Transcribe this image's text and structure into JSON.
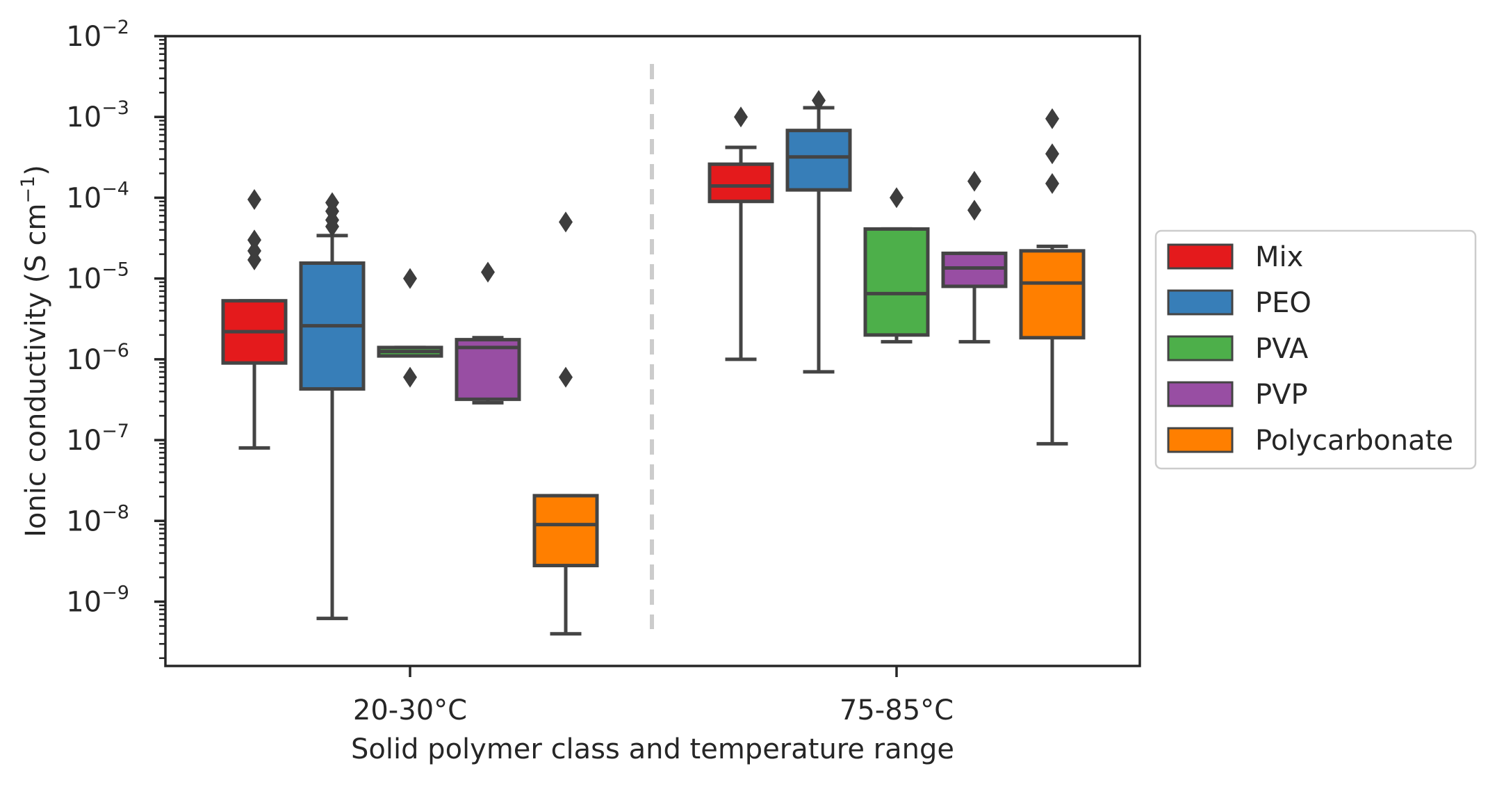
{
  "chart_data": {
    "type": "box",
    "xlabel": "Solid polymer class and temperature range",
    "ylabel": "Ionic conductivity (S cm",
    "ylabel_unit_exponent": "−1",
    "ylabel_close": ")",
    "y_scale": "log",
    "ylim": [
      1.6e-10,
      0.01
    ],
    "y_tick_base": "10",
    "y_tick_exponents": [
      "−9",
      "−8",
      "−7",
      "−6",
      "−5",
      "−4",
      "−3",
      "−2"
    ],
    "categories": [
      "20-30°C",
      "75-85°C"
    ],
    "divider": "dashed vertical line between temperature ranges",
    "legend": {
      "position": "right, outside plot",
      "entries": [
        {
          "name": "Mix",
          "color": "#e41a1c"
        },
        {
          "name": "PEO",
          "color": "#377eb8"
        },
        {
          "name": "PVA",
          "color": "#4daf4a"
        },
        {
          "name": "PVP",
          "color": "#984ea3"
        },
        {
          "name": "Polycarbonate",
          "color": "#ff7f00"
        }
      ]
    },
    "series": [
      {
        "name": "Mix",
        "boxes": [
          {
            "category": "20-30°C",
            "whisker_low": 8e-08,
            "q1": 9e-07,
            "median": 2.2e-06,
            "q3": 5.3e-06,
            "whisker_high": 5.3e-06,
            "outliers": [
              9.5e-05,
              3e-05,
              2.2e-05,
              1.7e-05
            ]
          },
          {
            "category": "75-85°C",
            "whisker_low": 1e-06,
            "q1": 9e-05,
            "median": 0.00014,
            "q3": 0.00026,
            "whisker_high": 0.00042,
            "outliers": [
              0.001
            ]
          }
        ]
      },
      {
        "name": "PEO",
        "boxes": [
          {
            "category": "20-30°C",
            "whisker_low": 6.2e-10,
            "q1": 4.3e-07,
            "median": 2.6e-06,
            "q3": 1.55e-05,
            "whisker_high": 3.4e-05,
            "outliers": [
              8.7e-05,
              6.8e-05,
              5.3e-05,
              4.4e-05
            ]
          },
          {
            "category": "75-85°C",
            "whisker_low": 7e-07,
            "q1": 0.000125,
            "median": 0.00032,
            "q3": 0.00068,
            "whisker_high": 0.0013,
            "outliers": [
              0.0016
            ]
          }
        ]
      },
      {
        "name": "PVA",
        "boxes": [
          {
            "category": "20-30°C",
            "whisker_low": 1.1e-06,
            "q1": 1.1e-06,
            "median": 1.25e-06,
            "q3": 1.4e-06,
            "whisker_high": 1.4e-06,
            "outliers": [
              1e-05,
              6e-07
            ]
          },
          {
            "category": "75-85°C",
            "whisker_low": 1.65e-06,
            "q1": 2e-06,
            "median": 6.5e-06,
            "q3": 4.1e-05,
            "whisker_high": 4.1e-05,
            "outliers": [
              0.0001
            ]
          }
        ]
      },
      {
        "name": "PVP",
        "boxes": [
          {
            "category": "20-30°C",
            "whisker_low": 2.9e-07,
            "q1": 3.2e-07,
            "median": 1.4e-06,
            "q3": 1.75e-06,
            "whisker_high": 1.85e-06,
            "outliers": [
              1.2e-05
            ]
          },
          {
            "category": "75-85°C",
            "whisker_low": 1.65e-06,
            "q1": 8e-06,
            "median": 1.35e-05,
            "q3": 2.05e-05,
            "whisker_high": 2.05e-05,
            "outliers": [
              0.00016,
              7e-05
            ]
          }
        ]
      },
      {
        "name": "Polycarbonate",
        "boxes": [
          {
            "category": "20-30°C",
            "whisker_low": 4e-10,
            "q1": 2.8e-09,
            "median": 9e-09,
            "q3": 2.05e-08,
            "whisker_high": 2.05e-08,
            "outliers": [
              5e-05,
              6e-07
            ]
          },
          {
            "category": "75-85°C",
            "whisker_low": 9e-08,
            "q1": 1.85e-06,
            "median": 8.8e-06,
            "q3": 2.2e-05,
            "whisker_high": 2.5e-05,
            "outliers": [
              0.00095,
              0.00035,
              0.00015
            ]
          }
        ]
      }
    ]
  }
}
